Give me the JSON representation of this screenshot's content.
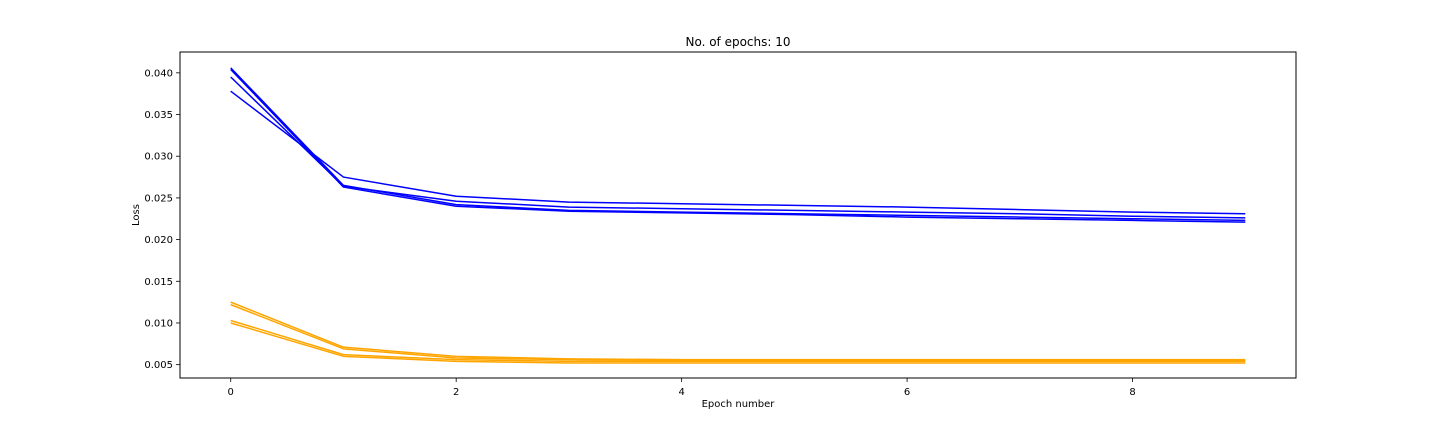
{
  "chart_data": {
    "type": "line",
    "title": "No. of epochs: 10",
    "xlabel": "Epoch number",
    "ylabel": "Loss",
    "xlim": [
      -0.45,
      9.45
    ],
    "ylim": [
      0.0034,
      0.0425
    ],
    "xticks": [
      0,
      2,
      4,
      6,
      8
    ],
    "xtick_labels": [
      "0",
      "2",
      "4",
      "6",
      "8"
    ],
    "yticks": [
      0.005,
      0.01,
      0.015,
      0.02,
      0.025,
      0.03,
      0.035,
      0.04
    ],
    "ytick_labels": [
      "0.005",
      "0.010",
      "0.015",
      "0.020",
      "0.025",
      "0.030",
      "0.035",
      "0.040"
    ],
    "grid": false,
    "legend": "none",
    "x": [
      0,
      1,
      2,
      3,
      4,
      5,
      6,
      7,
      8,
      9
    ],
    "series": [
      {
        "color": "#0000ff",
        "values": [
          0.0406,
          0.0265,
          0.0242,
          0.0235,
          0.0233,
          0.0231,
          0.0229,
          0.0227,
          0.0225,
          0.0223
        ]
      },
      {
        "color": "#0000ff",
        "values": [
          0.0404,
          0.0263,
          0.024,
          0.0234,
          0.0232,
          0.023,
          0.0227,
          0.0225,
          0.0223,
          0.0221
        ]
      },
      {
        "color": "#0000ff",
        "values": [
          0.0395,
          0.0264,
          0.0246,
          0.0239,
          0.0237,
          0.0235,
          0.0233,
          0.0231,
          0.0228,
          0.0226
        ]
      },
      {
        "color": "#0000ff",
        "values": [
          0.0378,
          0.0275,
          0.0252,
          0.0245,
          0.0243,
          0.0241,
          0.0239,
          0.0236,
          0.0233,
          0.0231
        ]
      },
      {
        "color": "#ffa500",
        "values": [
          0.0125,
          0.0071,
          0.006,
          0.0057,
          0.0056,
          0.0056,
          0.0056,
          0.0056,
          0.0056,
          0.0056
        ]
      },
      {
        "color": "#ffa500",
        "values": [
          0.0122,
          0.0069,
          0.0058,
          0.0056,
          0.0055,
          0.0055,
          0.0055,
          0.0055,
          0.0055,
          0.0055
        ]
      },
      {
        "color": "#ffa500",
        "values": [
          0.0103,
          0.0062,
          0.0056,
          0.0054,
          0.0054,
          0.0054,
          0.0054,
          0.0054,
          0.0054,
          0.0054
        ]
      },
      {
        "color": "#ffa500",
        "values": [
          0.01,
          0.006,
          0.0054,
          0.0052,
          0.0052,
          0.0052,
          0.0052,
          0.0052,
          0.0052,
          0.0052
        ]
      }
    ]
  }
}
